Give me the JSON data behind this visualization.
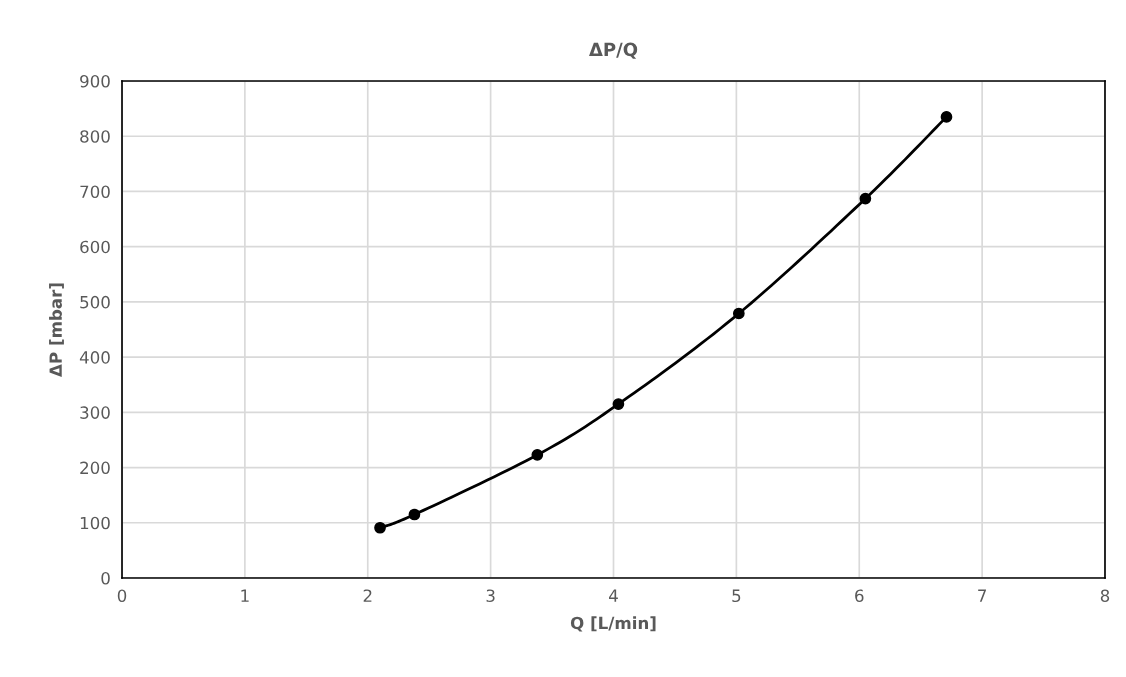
{
  "chart_data": {
    "type": "line",
    "title": "ΔP/Q",
    "xlabel": "Q [L/min]",
    "ylabel": "ΔP [mbar]",
    "x": [
      2.1,
      2.38,
      3.38,
      4.04,
      5.02,
      6.05,
      6.71
    ],
    "series": [
      {
        "color": "#000000",
        "values": [
          91,
          115,
          223,
          315,
          479,
          687,
          835
        ]
      }
    ],
    "xlim": [
      0,
      8
    ],
    "xticks": [
      0,
      1,
      2,
      3,
      4,
      5,
      6,
      7,
      8
    ],
    "ylim": [
      0,
      900
    ],
    "yticks": [
      0,
      100,
      200,
      300,
      400,
      500,
      600,
      700,
      800,
      900
    ],
    "grid": true,
    "marker": "circle",
    "line_style": "solid"
  }
}
